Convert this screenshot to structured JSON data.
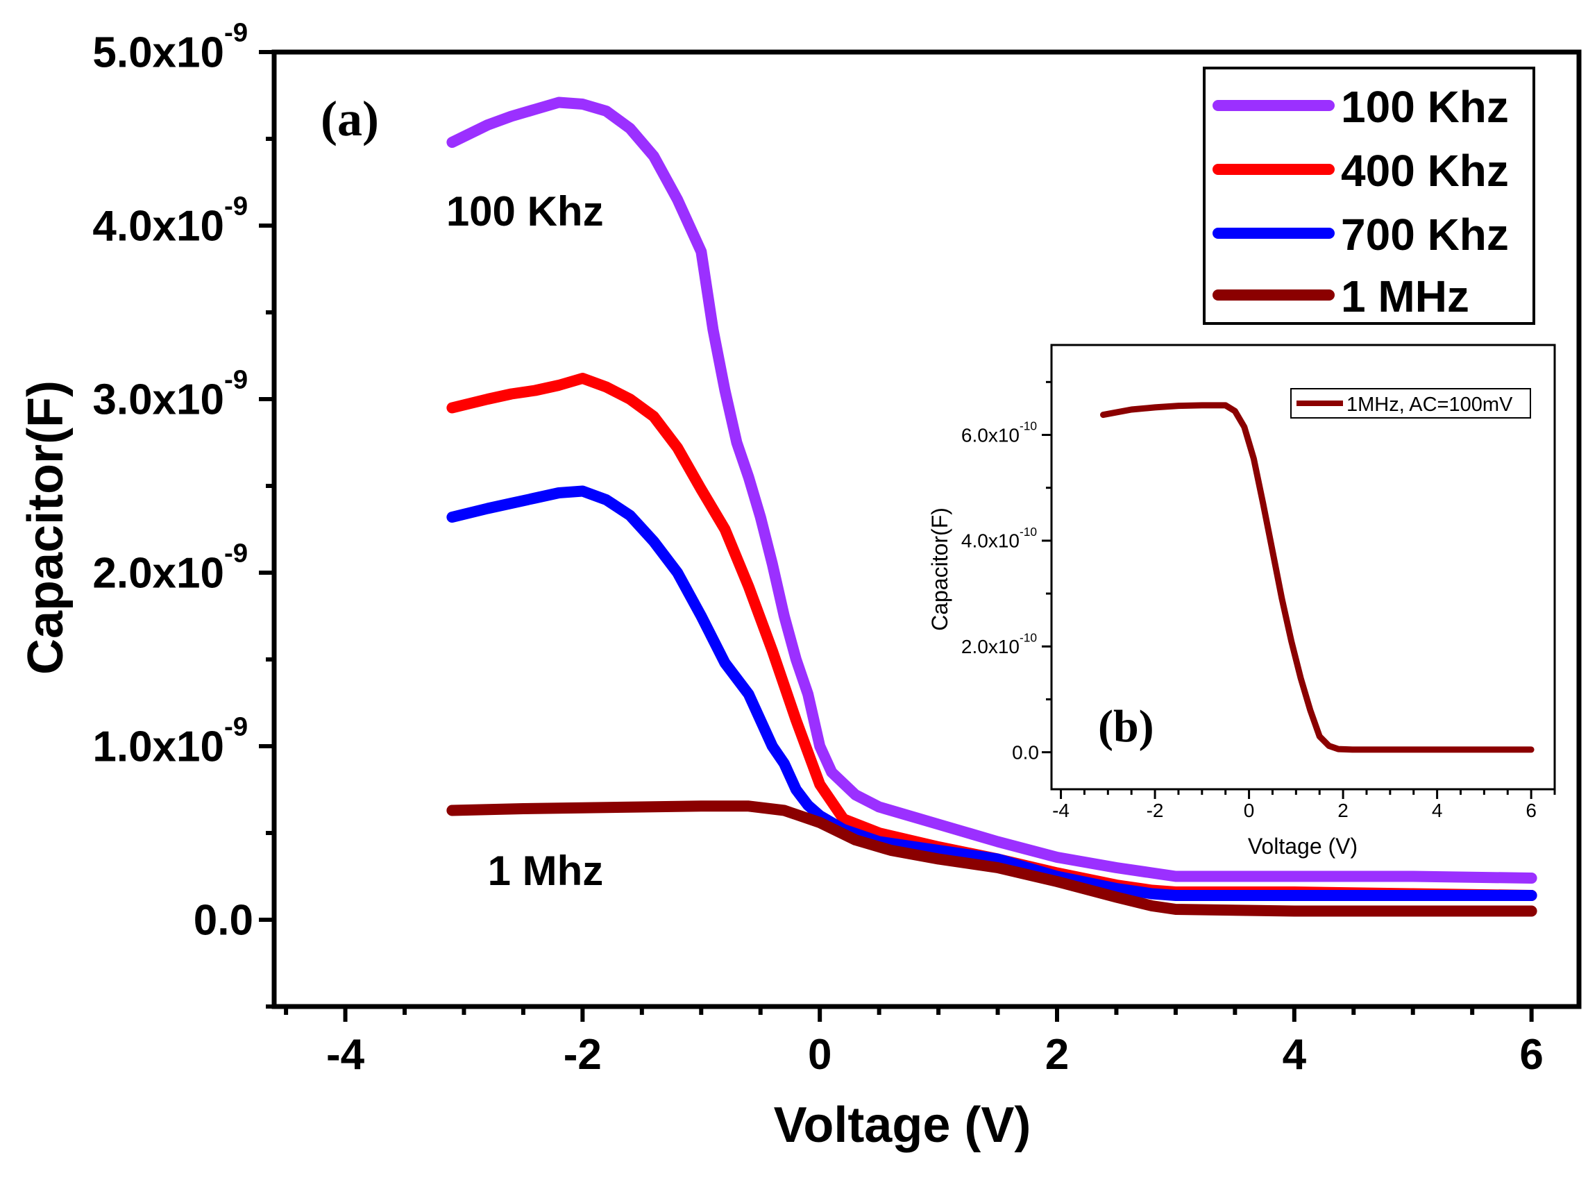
{
  "colors": {
    "100_khz": "#9b30ff",
    "400_khz": "#ff0000",
    "700_khz": "#0000ff",
    "1_mhz": "#8b0000",
    "axis": "#000000"
  },
  "chart_data": [
    {
      "id": "main",
      "type": "line",
      "panel_label": "(a)",
      "xlabel": "Voltage (V)",
      "ylabel": "Capacitor(F)",
      "xlim": [
        -4.6,
        6.4
      ],
      "ylim": [
        -5e-10,
        5e-09
      ],
      "x_ticks": [
        -4,
        -2,
        0,
        2,
        4,
        6
      ],
      "x_tick_labels": [
        "-4",
        "-2",
        "0",
        "2",
        "4",
        "6"
      ],
      "y_ticks": [
        0,
        1e-09,
        2e-09,
        3e-09,
        4e-09,
        5e-09
      ],
      "y_tick_mantissas": [
        "0.0",
        "1.0x10",
        "2.0x10",
        "3.0x10",
        "4.0x10",
        "5.0x10"
      ],
      "y_tick_exponents": [
        "",
        "-9",
        "-9",
        "-9",
        "-9",
        "-9"
      ],
      "legend_position": "top-right",
      "annotations": [
        {
          "text": "100 Khz",
          "x": -3.15,
          "y": 4e-09
        },
        {
          "text": "1 Mhz",
          "x": -2.8,
          "y": 2e-10
        }
      ],
      "series": [
        {
          "name": "100 Khz",
          "color_key": "100_khz",
          "x": [
            -3.1,
            -2.8,
            -2.6,
            -2.4,
            -2.2,
            -2.0,
            -1.8,
            -1.6,
            -1.4,
            -1.2,
            -1.0,
            -0.9,
            -0.8,
            -0.7,
            -0.6,
            -0.5,
            -0.4,
            -0.3,
            -0.2,
            -0.1,
            0.0,
            0.1,
            0.3,
            0.5,
            1.0,
            1.5,
            2.0,
            2.5,
            2.8,
            3.0,
            4.0,
            5.0,
            6.0
          ],
          "y": [
            4.48e-09,
            4.58e-09,
            4.63e-09,
            4.67e-09,
            4.71e-09,
            4.7e-09,
            4.66e-09,
            4.56e-09,
            4.4e-09,
            4.15e-09,
            3.85e-09,
            3.4e-09,
            3.05e-09,
            2.75e-09,
            2.55e-09,
            2.32e-09,
            2.05e-09,
            1.75e-09,
            1.5e-09,
            1.3e-09,
            1e-09,
            8.5e-10,
            7.2e-10,
            6.5e-10,
            5.5e-10,
            4.5e-10,
            3.6e-10,
            3e-10,
            2.7e-10,
            2.5e-10,
            2.5e-10,
            2.5e-10,
            2.4e-10
          ]
        },
        {
          "name": "400 Khz",
          "color_key": "400_khz",
          "x": [
            -3.1,
            -2.8,
            -2.6,
            -2.4,
            -2.2,
            -2.0,
            -1.8,
            -1.6,
            -1.4,
            -1.2,
            -1.0,
            -0.8,
            -0.6,
            -0.4,
            -0.2,
            0.0,
            0.2,
            0.5,
            1.0,
            1.5,
            2.0,
            2.5,
            2.8,
            3.0,
            4.0,
            5.0,
            6.0
          ],
          "y": [
            2.95e-09,
            3e-09,
            3.03e-09,
            3.05e-09,
            3.08e-09,
            3.12e-09,
            3.07e-09,
            3e-09,
            2.9e-09,
            2.72e-09,
            2.48e-09,
            2.25e-09,
            1.92e-09,
            1.55e-09,
            1.15e-09,
            7.8e-10,
            5.8e-10,
            5e-10,
            4.2e-10,
            3.5e-10,
            2.7e-10,
            2e-10,
            1.7e-10,
            1.6e-10,
            1.6e-10,
            1.5e-10,
            1.4e-10
          ]
        },
        {
          "name": "700 Khz",
          "color_key": "700_khz",
          "x": [
            -3.1,
            -2.8,
            -2.6,
            -2.4,
            -2.2,
            -2.0,
            -1.8,
            -1.6,
            -1.4,
            -1.2,
            -1.0,
            -0.8,
            -0.6,
            -0.4,
            -0.3,
            -0.2,
            -0.1,
            0.0,
            0.2,
            0.5,
            1.0,
            1.5,
            2.0,
            2.5,
            2.8,
            3.0,
            4.0,
            5.0,
            6.0
          ],
          "y": [
            2.32e-09,
            2.37e-09,
            2.4e-09,
            2.43e-09,
            2.46e-09,
            2.47e-09,
            2.42e-09,
            2.33e-09,
            2.18e-09,
            2e-09,
            1.75e-09,
            1.48e-09,
            1.3e-09,
            1e-09,
            9e-10,
            7.5e-10,
            6.6e-10,
            6e-10,
            5.2e-10,
            4.5e-10,
            4e-10,
            3.5e-10,
            2.5e-10,
            1.8e-10,
            1.5e-10,
            1.4e-10,
            1.4e-10,
            1.4e-10,
            1.4e-10
          ]
        },
        {
          "name": "1 MHz",
          "color_key": "1_mhz",
          "x": [
            -3.1,
            -2.5,
            -2.0,
            -1.5,
            -1.0,
            -0.6,
            -0.3,
            0.0,
            0.3,
            0.6,
            1.0,
            1.5,
            2.0,
            2.5,
            2.8,
            3.0,
            4.0,
            5.0,
            6.0
          ],
          "y": [
            6.3e-10,
            6.4e-10,
            6.45e-10,
            6.5e-10,
            6.55e-10,
            6.55e-10,
            6.3e-10,
            5.6e-10,
            4.6e-10,
            4e-10,
            3.5e-10,
            3e-10,
            2.2e-10,
            1.3e-10,
            8e-11,
            6e-11,
            5e-11,
            5e-11,
            5e-11
          ]
        }
      ]
    },
    {
      "id": "inset",
      "type": "line",
      "panel_label": "(b)",
      "xlabel": "Voltage (V)",
      "ylabel": "Capacitor(F)",
      "xlim": [
        -4.2,
        6.5
      ],
      "ylim": [
        -7e-11,
        7.7e-10
      ],
      "x_ticks": [
        -4,
        -2,
        0,
        2,
        4,
        6
      ],
      "x_tick_labels": [
        "-4",
        "-2",
        "0",
        "2",
        "4",
        "6"
      ],
      "y_ticks": [
        0,
        2e-10,
        4e-10,
        6e-10
      ],
      "y_tick_mantissas": [
        "0.0",
        "2.0x10",
        "4.0x10",
        "6.0x10"
      ],
      "y_tick_exponents": [
        "",
        "-10",
        "-10",
        "-10"
      ],
      "legend_position": "top-right",
      "series": [
        {
          "name": "1MHz, AC=100mV",
          "color_key": "1_mhz",
          "x": [
            -3.1,
            -2.5,
            -2.0,
            -1.5,
            -1.0,
            -0.5,
            -0.3,
            -0.1,
            0.1,
            0.3,
            0.5,
            0.7,
            0.9,
            1.1,
            1.3,
            1.5,
            1.7,
            1.9,
            2.2,
            3.0,
            4.0,
            5.0,
            6.0
          ],
          "y": [
            6.38e-10,
            6.48e-10,
            6.52e-10,
            6.55e-10,
            6.56e-10,
            6.56e-10,
            6.45e-10,
            6.15e-10,
            5.55e-10,
            4.7e-10,
            3.8e-10,
            2.9e-10,
            2.1e-10,
            1.4e-10,
            8e-11,
            3e-11,
            1.2e-11,
            6e-12,
            5e-12,
            5e-12,
            5e-12,
            5e-12,
            5e-12
          ]
        }
      ]
    }
  ]
}
